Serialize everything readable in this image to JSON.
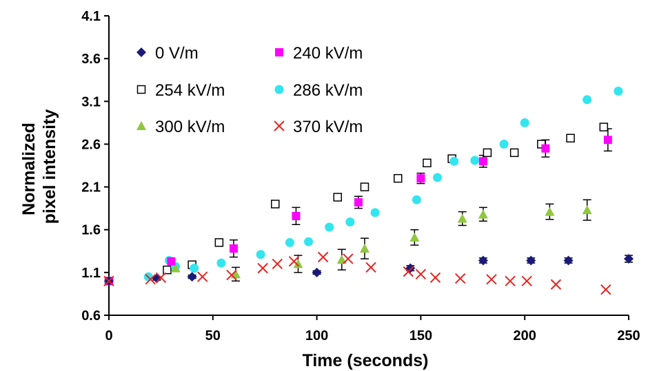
{
  "chart_data": {
    "type": "scatter",
    "xlabel": "Time (seconds)",
    "ylabel": [
      "Normalized",
      "pixel intensity"
    ],
    "xlim": [
      0,
      250
    ],
    "ylim": [
      0.6,
      4.1
    ],
    "xticks": [
      0,
      50,
      100,
      150,
      200,
      250
    ],
    "yticks": [
      0.6,
      1.1,
      1.6,
      2.1,
      2.6,
      3.1,
      3.6,
      4.1
    ],
    "ytick_labels": [
      "0.6",
      "1.1",
      "1.6",
      "2.1",
      "2.6",
      "3.1",
      "3.6",
      "4.1"
    ],
    "grid": false,
    "legend_position": "top-left, inside, 2 columns",
    "series": [
      {
        "name": "0 V/m",
        "marker": "diamond",
        "color": "#1a1a7a",
        "x": [
          0,
          23,
          40,
          100,
          145,
          180,
          203,
          221,
          250
        ],
        "y": [
          1.0,
          1.03,
          1.05,
          1.1,
          1.15,
          1.24,
          1.24,
          1.24,
          1.26
        ],
        "err": [
          0.02,
          0.02,
          0.02,
          0.02,
          0.03,
          0.03,
          0.03,
          0.03,
          0.04
        ]
      },
      {
        "name": "240 kV/m",
        "marker": "square",
        "color": "#ff00ff",
        "x": [
          0,
          30,
          60,
          90,
          120,
          150,
          180,
          210,
          240
        ],
        "y": [
          1.0,
          1.23,
          1.38,
          1.76,
          1.92,
          2.2,
          2.4,
          2.55,
          2.65
        ],
        "err": [
          0.02,
          0.03,
          0.1,
          0.1,
          0.07,
          0.06,
          0.07,
          0.1,
          0.13
        ]
      },
      {
        "name": "254 kV/m",
        "marker": "open-square",
        "color": "#000000",
        "x": [
          0,
          28,
          40,
          53,
          80,
          110,
          123,
          139,
          153,
          165,
          182,
          195,
          208,
          222,
          238
        ],
        "y": [
          1.0,
          1.13,
          1.19,
          1.45,
          1.9,
          1.98,
          2.1,
          2.2,
          2.38,
          2.43,
          2.5,
          2.5,
          2.6,
          2.67,
          2.8
        ],
        "err": []
      },
      {
        "name": "286 kV/m",
        "marker": "circle",
        "color": "#33e5ee",
        "x": [
          0,
          19,
          29,
          32,
          41,
          54,
          73,
          87,
          96,
          106,
          116,
          128,
          148,
          158,
          166,
          176,
          190,
          200,
          230,
          245
        ],
        "y": [
          1.0,
          1.05,
          1.24,
          1.17,
          1.15,
          1.21,
          1.31,
          1.45,
          1.46,
          1.63,
          1.69,
          1.8,
          1.95,
          2.21,
          2.4,
          2.41,
          2.6,
          2.85,
          3.12,
          3.22
        ],
        "err": []
      },
      {
        "name": "300 kV/m",
        "marker": "triangle",
        "color": "#8fc73e",
        "x": [
          0,
          32,
          61,
          91,
          112,
          123,
          147,
          170,
          180,
          212,
          230
        ],
        "y": [
          1.0,
          1.15,
          1.08,
          1.2,
          1.25,
          1.38,
          1.51,
          1.73,
          1.78,
          1.81,
          1.83
        ],
        "err": [
          0.02,
          0.03,
          0.08,
          0.1,
          0.12,
          0.12,
          0.09,
          0.08,
          0.08,
          0.09,
          0.12
        ]
      },
      {
        "name": "370 kV/m",
        "marker": "x",
        "color": "#e8231f",
        "x": [
          0,
          20,
          25,
          45,
          59,
          74,
          81,
          89,
          103,
          115,
          126,
          144,
          150,
          157,
          169,
          184,
          193,
          201,
          215,
          239
        ],
        "y": [
          1.0,
          1.02,
          1.04,
          1.05,
          1.07,
          1.15,
          1.2,
          1.23,
          1.28,
          1.26,
          1.16,
          1.11,
          1.08,
          1.04,
          1.03,
          1.02,
          1.0,
          1.0,
          0.96,
          0.9
        ],
        "err": []
      }
    ]
  }
}
